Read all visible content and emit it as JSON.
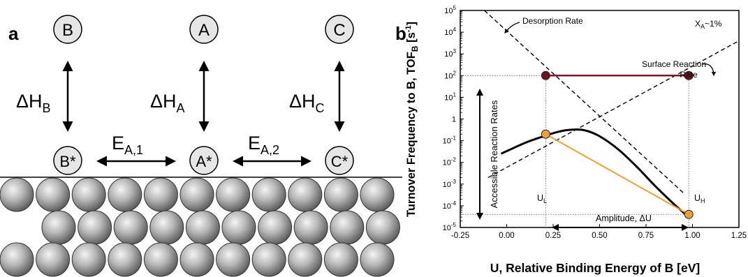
{
  "panel_a": {
    "label": "a",
    "gas_species": [
      "B",
      "A",
      "C"
    ],
    "adsorbed_species": [
      "B*",
      "A*",
      "C*"
    ],
    "enthalpies": [
      {
        "main": "ΔH",
        "sub": "B"
      },
      {
        "main": "ΔH",
        "sub": "A"
      },
      {
        "main": "ΔH",
        "sub": "C"
      }
    ],
    "activation_energies": [
      {
        "main": "E",
        "sub": "A,1"
      },
      {
        "main": "E",
        "sub": "A,2"
      }
    ]
  },
  "panel_b": {
    "label": "b",
    "annotations": {
      "desorption_rate": "Desorption Rate",
      "surface_reaction_rate_line1": "Surface Reaction",
      "surface_reaction_rate_line2": "Rate",
      "conversion_main": "X",
      "conversion_sub": "A",
      "conversion_suffix": "~1%",
      "accessible_rates": "Accessible Reaction Rates",
      "u_low_main": "U",
      "u_low_sub": "L",
      "u_high_main": "U",
      "u_high_sub": "H",
      "amplitude": "Amplitude, ΔU"
    },
    "colors": {
      "max_line": "#7a1a2a",
      "max_marker": "#6e1422",
      "min_line": "#f0a030",
      "min_marker": "#f0a030"
    }
  },
  "chart_data": {
    "type": "line",
    "xlabel": "U, Relative Binding Energy of B [eV]",
    "ylabel_parts": {
      "main": "Turnover Frequency to B, TOF",
      "sub": "B",
      "unit_pre": " [s",
      "unit_sup": "-1",
      "unit_post": "]"
    },
    "xlim": [
      -0.25,
      1.25
    ],
    "ylim_log10": [
      -5,
      5
    ],
    "yscale": "log",
    "grid": false,
    "x_ticks": [
      "-0.25",
      "0.00",
      "0.25",
      "0.50",
      "0.75",
      "1.00",
      "1.25"
    ],
    "x_tick_values": [
      -0.25,
      0.0,
      0.25,
      0.5,
      0.75,
      1.0,
      1.25
    ],
    "y_ticks": [
      {
        "exp": -5,
        "label": "10",
        "sup": "-5"
      },
      {
        "exp": -4,
        "label": "10",
        "sup": "-4"
      },
      {
        "exp": -3,
        "label": "10",
        "sup": "-3"
      },
      {
        "exp": -2,
        "label": "10",
        "sup": "-2"
      },
      {
        "exp": -1,
        "label": "10",
        "sup": "-1"
      },
      {
        "exp": 0,
        "label": "1",
        "sup": ""
      },
      {
        "exp": 1,
        "label": "10",
        "sup": "1"
      },
      {
        "exp": 2,
        "label": "10",
        "sup": "2"
      },
      {
        "exp": 3,
        "label": "10",
        "sup": "3"
      },
      {
        "exp": 4,
        "label": "10",
        "sup": "4"
      },
      {
        "exp": 5,
        "label": "10",
        "sup": "5"
      }
    ],
    "series": [
      {
        "style": "dashed",
        "x": [
          -0.1,
          1.25
        ],
        "y": [
          0.002,
          4000
        ]
      },
      {
        "style": "dashed",
        "x": [
          -0.12,
          0.95
        ],
        "y": [
          100000,
          0.0004
        ]
      },
      {
        "style": "solid",
        "x": [
          -0.03,
          0.1,
          0.2,
          0.28,
          0.35,
          0.42,
          0.5,
          0.6,
          0.7,
          0.8,
          0.9,
          0.98
        ],
        "y": [
          0.025,
          0.08,
          0.16,
          0.26,
          0.32,
          0.3,
          0.16,
          0.04,
          0.0063,
          0.0008,
          0.00012,
          3e-05
        ]
      },
      {
        "style": "max-line",
        "x": [
          0.21,
          0.98
        ],
        "y": [
          100,
          100
        ]
      },
      {
        "style": "min-line",
        "x": [
          0.21,
          0.98
        ],
        "y": [
          0.2,
          4e-05
        ]
      }
    ],
    "guides": {
      "x": [
        0.21,
        0.98
      ],
      "y": [
        100,
        4e-05
      ]
    }
  }
}
